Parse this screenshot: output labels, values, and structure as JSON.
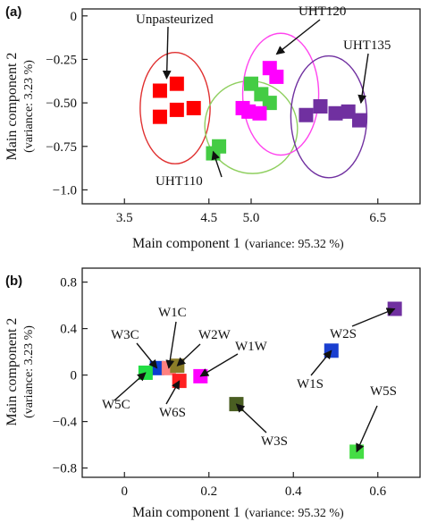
{
  "chart_data": [
    {
      "panel": "(a)",
      "type": "scatter",
      "xlabel": "Main component 1",
      "xlabel_suffix": "(variance: 95.32 %)",
      "ylabel": "Main component 2",
      "ylabel_suffix": "(variance: 3.23 %)",
      "xlim": [
        3.0,
        7.0
      ],
      "ylim": [
        -1.08,
        0.04
      ],
      "xticks": [
        "3.5",
        "4.5",
        "5.0",
        "6.5"
      ],
      "yticks": [
        "0",
        "−0.25",
        "−0.50",
        "−0.75",
        "−1.0"
      ],
      "xtick_values": [
        3.5,
        4.5,
        5.0,
        6.5
      ],
      "ytick_values": [
        0,
        -0.25,
        -0.5,
        -0.75,
        -1.0
      ],
      "series": [
        {
          "name": "Unpasteurized",
          "color": "#ff0000",
          "points": [
            [
              3.92,
              -0.43
            ],
            [
              4.12,
              -0.39
            ],
            [
              4.12,
              -0.54
            ],
            [
              4.32,
              -0.53
            ],
            [
              3.92,
              -0.58
            ]
          ]
        },
        {
          "name": "UHT110",
          "color": "#44cc44",
          "points": [
            [
              4.55,
              -0.79
            ],
            [
              4.62,
              -0.75
            ],
            [
              5.0,
              -0.39
            ],
            [
              5.12,
              -0.45
            ],
            [
              5.22,
              -0.5
            ]
          ]
        },
        {
          "name": "UHT120",
          "color": "#ff00ff",
          "points": [
            [
              5.22,
              -0.3
            ],
            [
              5.3,
              -0.35
            ],
            [
              4.9,
              -0.53
            ],
            [
              4.97,
              -0.55
            ],
            [
              5.1,
              -0.56
            ]
          ]
        },
        {
          "name": "UHT135",
          "color": "#7030a0",
          "points": [
            [
              5.65,
              -0.57
            ],
            [
              5.82,
              -0.52
            ],
            [
              6.0,
              -0.56
            ],
            [
              6.15,
              -0.55
            ],
            [
              6.28,
              -0.6
            ]
          ]
        }
      ],
      "ellipses": [
        {
          "color": "#e03030",
          "center": [
            4.1,
            -0.53
          ],
          "rx": 0.92,
          "ry": 0.32,
          "angle_deg": 0
        },
        {
          "color": "#8fcf5f",
          "center": [
            5.0,
            -0.64
          ],
          "rx": 1.2,
          "ry": 0.27,
          "angle_deg": -46
        },
        {
          "color": "#ff44ee",
          "center": [
            5.35,
            -0.45
          ],
          "rx": 1.0,
          "ry": 0.35,
          "angle_deg": 0
        },
        {
          "color": "#7030a0",
          "center": [
            5.92,
            -0.58
          ],
          "rx": 1.0,
          "ry": 0.35,
          "angle_deg": 0
        }
      ],
      "annotations": [
        {
          "text": "Unpasteurized",
          "target": [
            4.0,
            -0.36
          ]
        },
        {
          "text": "UHT120",
          "target": [
            5.3,
            -0.22
          ]
        },
        {
          "text": "UHT135",
          "target": [
            6.3,
            -0.5
          ]
        },
        {
          "text": "UHT110",
          "target": [
            4.55,
            -0.78
          ]
        }
      ]
    },
    {
      "panel": "(b)",
      "type": "scatter",
      "xlabel": "Main component 1",
      "xlabel_suffix": "(variance: 95.32 %)",
      "ylabel": "Main component 2",
      "ylabel_suffix": "(variance: 3.23 %)",
      "xlim": [
        -0.1,
        0.7
      ],
      "ylim": [
        -0.88,
        0.92
      ],
      "xticks": [
        "0",
        "0.2",
        "0.4",
        "0.6"
      ],
      "yticks": [
        "0.8",
        "0.4",
        "0",
        "−0.4",
        "−0.8"
      ],
      "xtick_values": [
        0,
        0.2,
        0.4,
        0.6
      ],
      "ytick_values": [
        0.8,
        0.4,
        0,
        -0.4,
        -0.8
      ],
      "points": [
        {
          "label": "W3C",
          "x": 0.077,
          "y": 0.06,
          "color": "#0a3fd0"
        },
        {
          "label": "W1C",
          "x": 0.105,
          "y": 0.06,
          "color": "#ff8080"
        },
        {
          "label": "W2W",
          "x": 0.125,
          "y": 0.08,
          "color": "#8b7d28"
        },
        {
          "label": "W6S",
          "x": 0.13,
          "y": -0.05,
          "color": "#ff2020"
        },
        {
          "label": "W1W",
          "x": 0.18,
          "y": -0.01,
          "color": "#ff00ff"
        },
        {
          "label": "W5C",
          "x": 0.05,
          "y": 0.02,
          "color": "#22dd44"
        },
        {
          "label": "W3S",
          "x": 0.265,
          "y": -0.25,
          "color": "#4a5e22"
        },
        {
          "label": "W1S",
          "x": 0.49,
          "y": 0.21,
          "color": "#1a3fd0"
        },
        {
          "label": "W2S",
          "x": 0.64,
          "y": 0.57,
          "color": "#7030a0"
        },
        {
          "label": "W5S",
          "x": 0.55,
          "y": -0.66,
          "color": "#44dd44"
        }
      ]
    }
  ]
}
